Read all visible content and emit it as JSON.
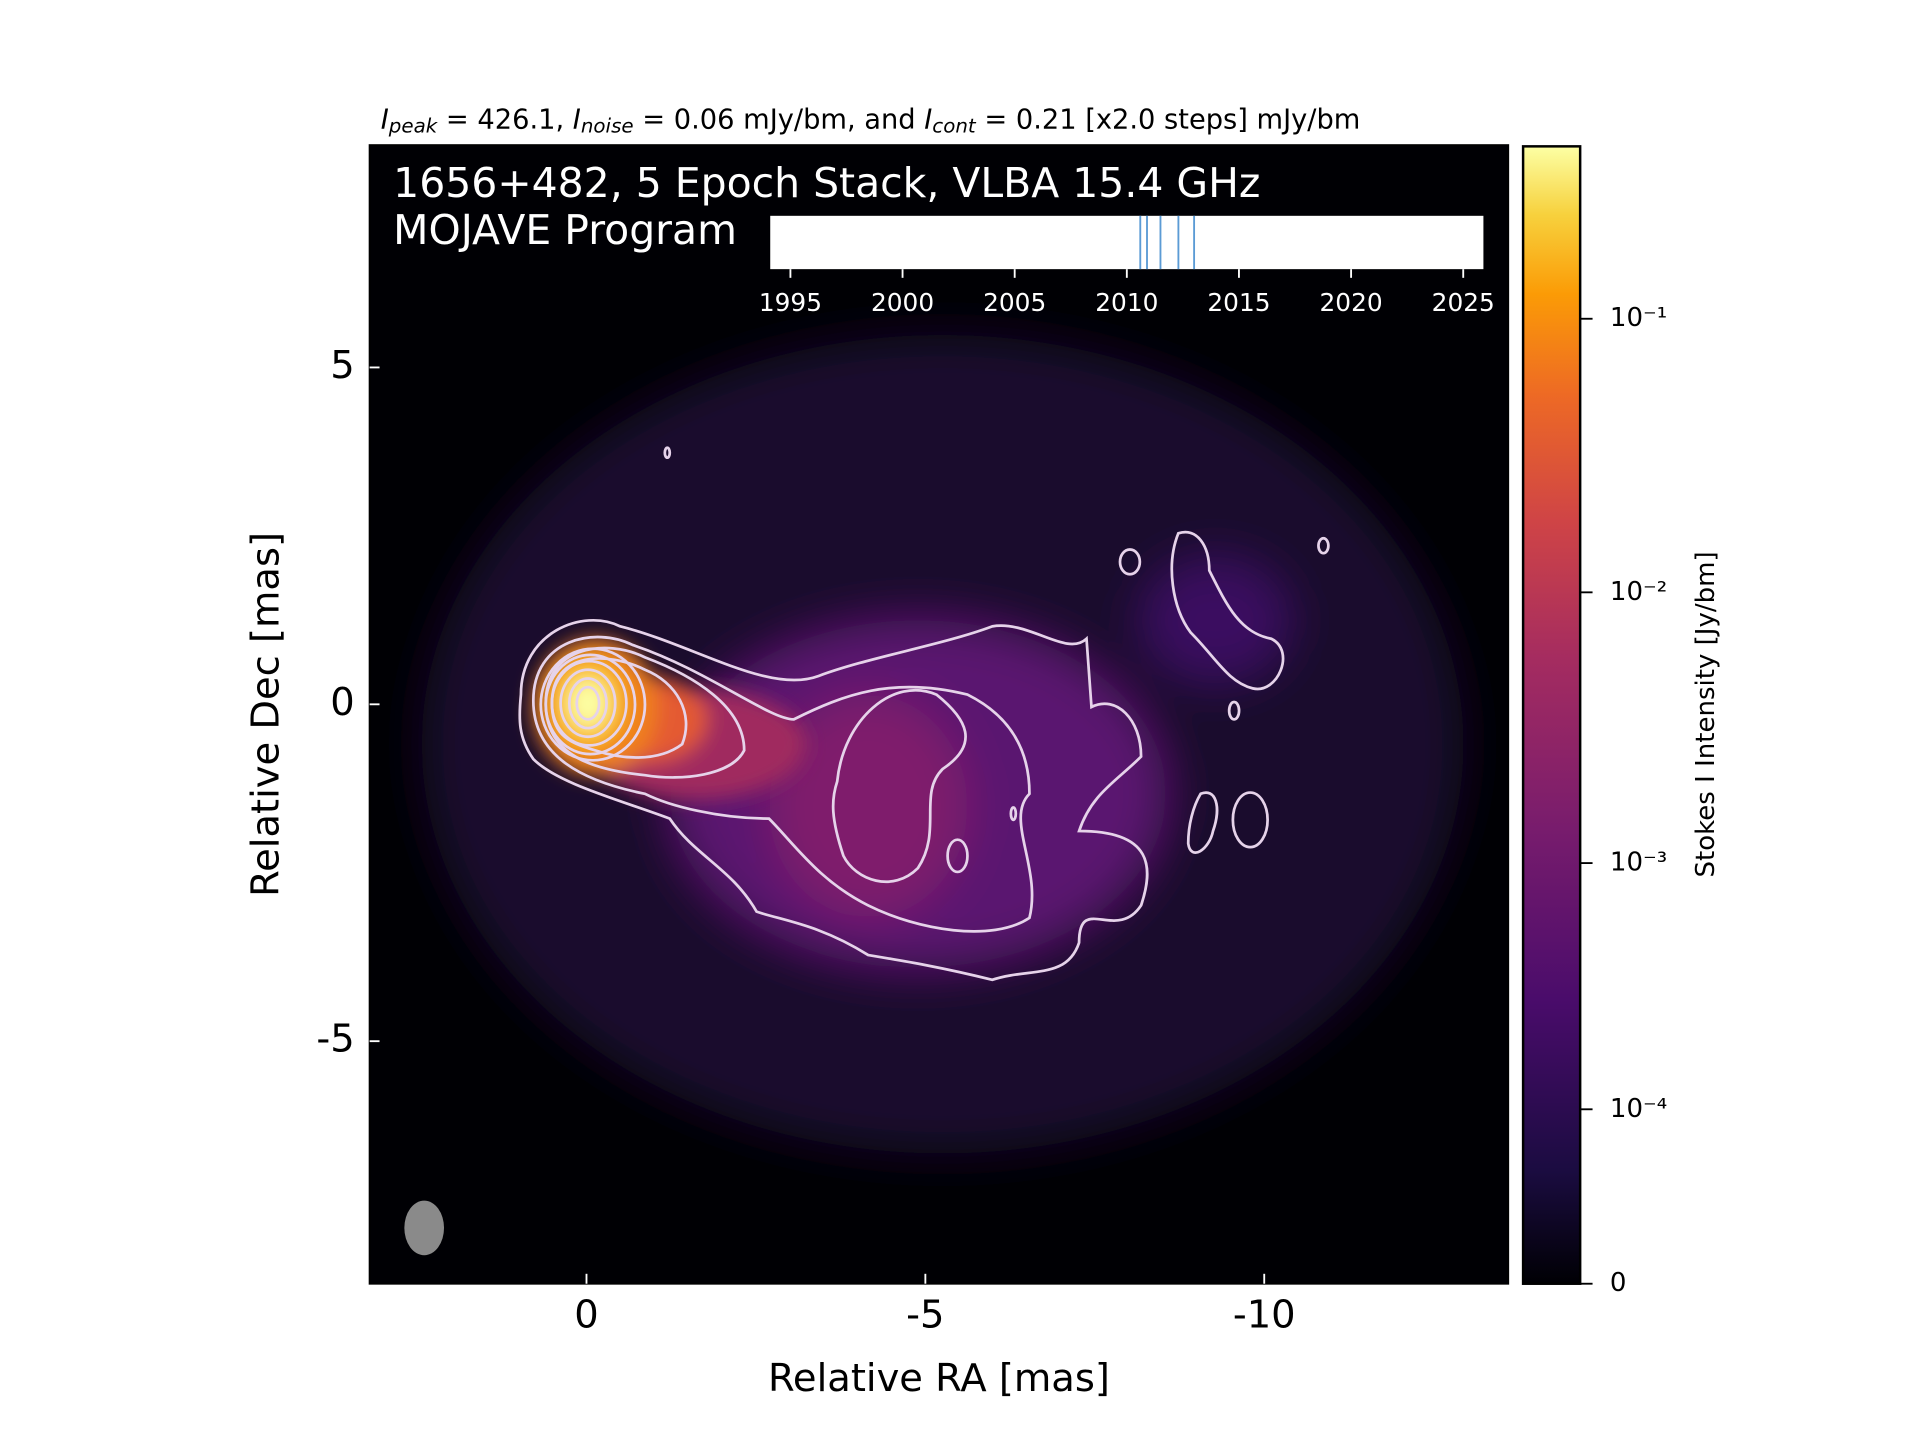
{
  "chart_data": {
    "type": "image",
    "header": [
      "I",
      "peak",
      " = 426.1, ",
      "I",
      "noise",
      " = 0.06 mJy/bm, and ",
      "I",
      "cont",
      " = 0.21 [x2.0 steps] mJy/bm"
    ],
    "title": "1656+482, 5 Epoch Stack, VLBA 15.4 GHz",
    "subtitle": "MOJAVE Program",
    "xlabel": "Relative RA [mas]",
    "ylabel": "Relative Dec [mas]",
    "xlim": [
      3.2,
      -13.6
    ],
    "ylim": [
      -8.6,
      8.3
    ],
    "xticks": [
      0,
      -5,
      -10
    ],
    "yticks": [
      -5,
      0,
      5
    ],
    "colorbar": {
      "label": "Stokes I Intensity [Jy/bm]",
      "clim": [
        0,
        0.4261
      ],
      "ticks": [
        0,
        {
          "value": 0.0001,
          "label": "10⁻⁴"
        },
        {
          "value": 0.001,
          "label": "10⁻³"
        },
        {
          "value": 0.01,
          "label": "10⁻²"
        },
        {
          "value": 0.1,
          "label": "10⁻¹"
        }
      ]
    },
    "timeline": {
      "xlim": [
        1994.1,
        2025.9
      ],
      "xticks": [
        1995,
        2000,
        2005,
        2010,
        2015,
        2020,
        2025
      ],
      "epochs": [
        2010.6,
        2010.9,
        2011.5,
        2012.3,
        2013.0
      ],
      "color": "#5b9bd5"
    }
  }
}
